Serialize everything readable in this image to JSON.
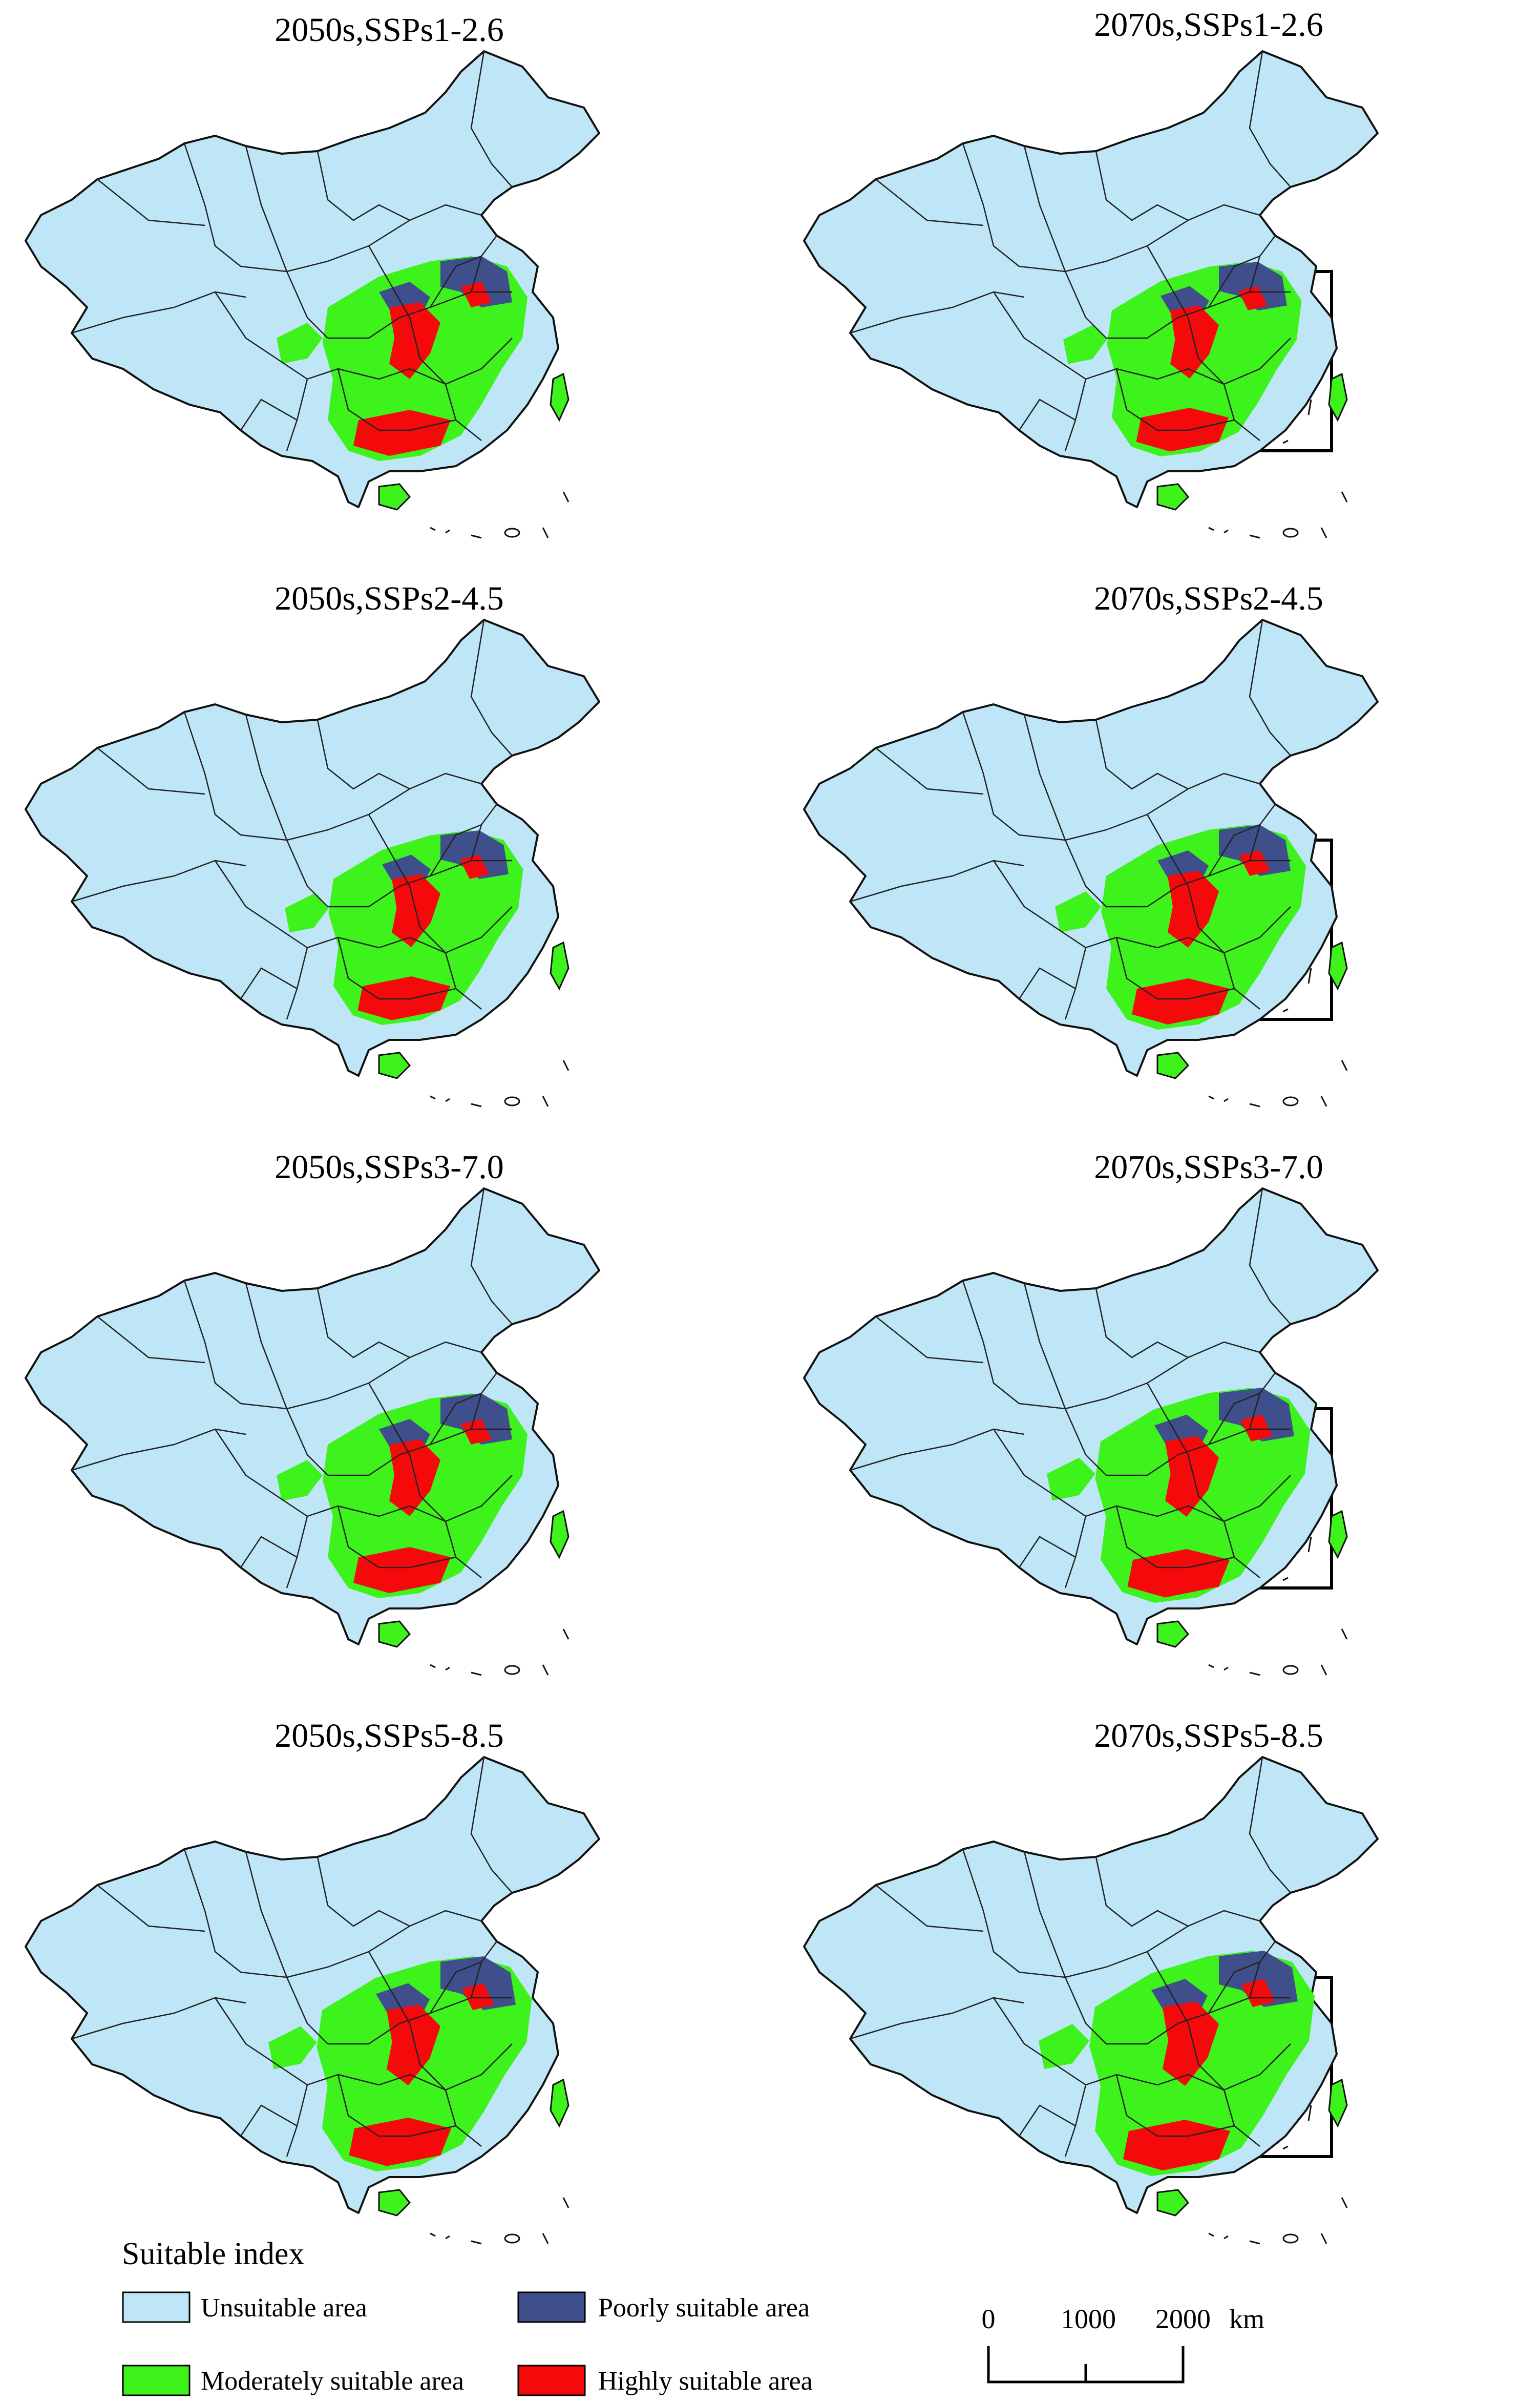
{
  "colors": {
    "unsuitable": "#bfe6f7",
    "poorly": "#3f4f8c",
    "moderately": "#3ef21c",
    "highly": "#f5090b"
  },
  "panels": [
    {
      "title": "2050s,SSPs1-2.6",
      "level": 1.0
    },
    {
      "title": "2070s,SSPs1-2.6",
      "level": 0.95
    },
    {
      "title": "2050s,SSPs2-4.5",
      "level": 0.95
    },
    {
      "title": "2070s,SSPs2-4.5",
      "level": 1.0
    },
    {
      "title": "2050s,SSPs3-7.0",
      "level": 1.0
    },
    {
      "title": "2070s,SSPs3-7.0",
      "level": 1.05
    },
    {
      "title": "2050s,SSPs5-8.5",
      "level": 1.05
    },
    {
      "title": "2070s,SSPs5-8.5",
      "level": 1.1
    }
  ],
  "legend": {
    "title": "Suitable index",
    "items": [
      {
        "label": "Unsuitable area",
        "color": "#bfe6f7"
      },
      {
        "label": "Poorly suitable area",
        "color": "#3f4f8c"
      },
      {
        "label": "Moderately suitable area",
        "color": "#3ef21c"
      },
      {
        "label": "Highly suitable area",
        "color": "#f5090b"
      }
    ]
  },
  "scale_bar": {
    "ticks": [
      "0",
      "1000",
      "2000"
    ],
    "unit": "km"
  }
}
